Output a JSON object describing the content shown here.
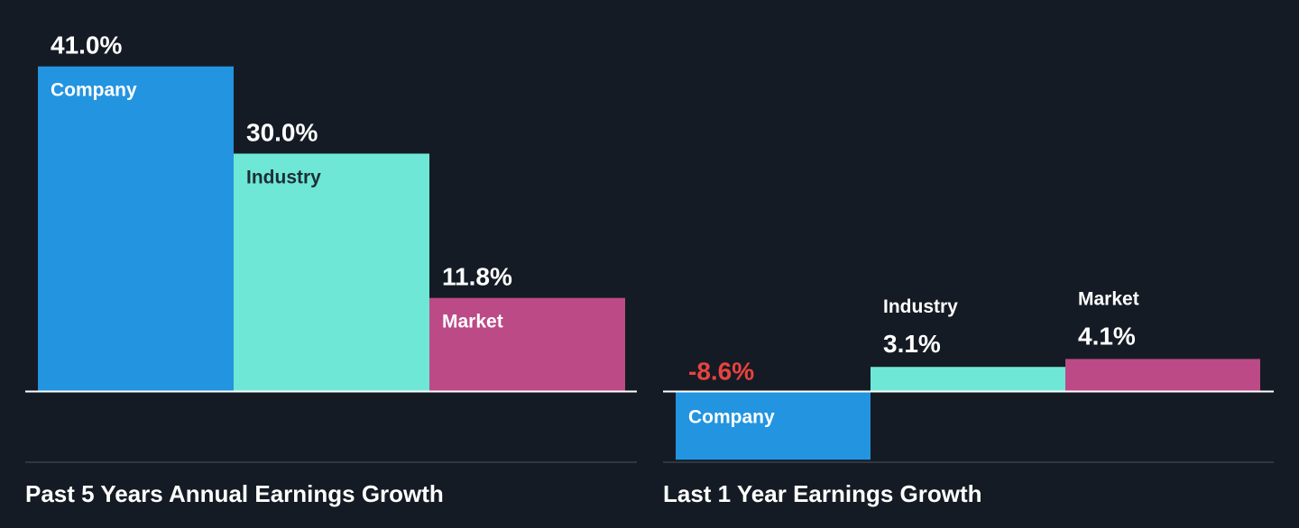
{
  "colors": {
    "background": "#151b24",
    "company": "#2394e0",
    "industry": "#6fe7d6",
    "market": "#bc4a87",
    "negative_text": "#e8433f",
    "baseline": "#ffffff",
    "divider": "#3a414c"
  },
  "chart_data": [
    {
      "type": "bar",
      "title": "Past 5 Years Annual Earnings Growth",
      "categories": [
        "Company",
        "Industry",
        "Market"
      ],
      "values": [
        41.0,
        30.0,
        11.8
      ],
      "value_labels": [
        "41.0%",
        "30.0%",
        "11.8%"
      ],
      "unit": "%",
      "xlabel": "",
      "ylabel": "",
      "grid": false,
      "legend": "none"
    },
    {
      "type": "bar",
      "title": "Last 1 Year Earnings Growth",
      "categories": [
        "Company",
        "Industry",
        "Market"
      ],
      "values": [
        -8.6,
        3.1,
        4.1
      ],
      "value_labels": [
        "-8.6%",
        "3.1%",
        "4.1%"
      ],
      "unit": "%",
      "xlabel": "",
      "ylabel": "",
      "grid": false,
      "legend": "none"
    }
  ]
}
